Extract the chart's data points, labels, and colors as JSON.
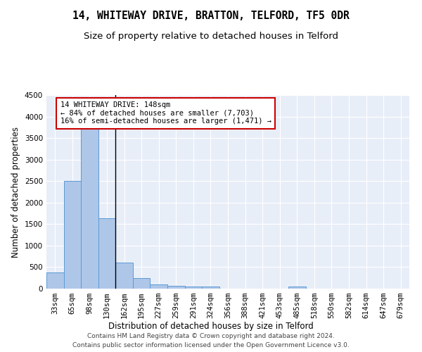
{
  "title": "14, WHITEWAY DRIVE, BRATTON, TELFORD, TF5 0DR",
  "subtitle": "Size of property relative to detached houses in Telford",
  "xlabel": "Distribution of detached houses by size in Telford",
  "ylabel": "Number of detached properties",
  "categories": [
    "33sqm",
    "65sqm",
    "98sqm",
    "130sqm",
    "162sqm",
    "195sqm",
    "227sqm",
    "259sqm",
    "291sqm",
    "324sqm",
    "356sqm",
    "388sqm",
    "421sqm",
    "453sqm",
    "485sqm",
    "518sqm",
    "550sqm",
    "582sqm",
    "614sqm",
    "647sqm",
    "679sqm"
  ],
  "values": [
    370,
    2500,
    3750,
    1640,
    600,
    240,
    105,
    60,
    50,
    50,
    0,
    0,
    0,
    0,
    55,
    0,
    0,
    0,
    0,
    0,
    0
  ],
  "bar_color": "#aec6e8",
  "bar_edge_color": "#5b9bd5",
  "annotation_text": "14 WHITEWAY DRIVE: 148sqm\n← 84% of detached houses are smaller (7,703)\n16% of semi-detached houses are larger (1,471) →",
  "annotation_box_color": "#ffffff",
  "annotation_box_edge": "#cc0000",
  "ylim": [
    0,
    4500
  ],
  "yticks": [
    0,
    500,
    1000,
    1500,
    2000,
    2500,
    3000,
    3500,
    4000,
    4500
  ],
  "background_color": "#e8eef8",
  "footer": "Contains HM Land Registry data © Crown copyright and database right 2024.\nContains public sector information licensed under the Open Government Licence v3.0.",
  "title_fontsize": 10.5,
  "subtitle_fontsize": 9.5,
  "xlabel_fontsize": 8.5,
  "ylabel_fontsize": 8.5,
  "tick_fontsize": 7.5,
  "footer_fontsize": 6.5,
  "annot_fontsize": 7.5
}
